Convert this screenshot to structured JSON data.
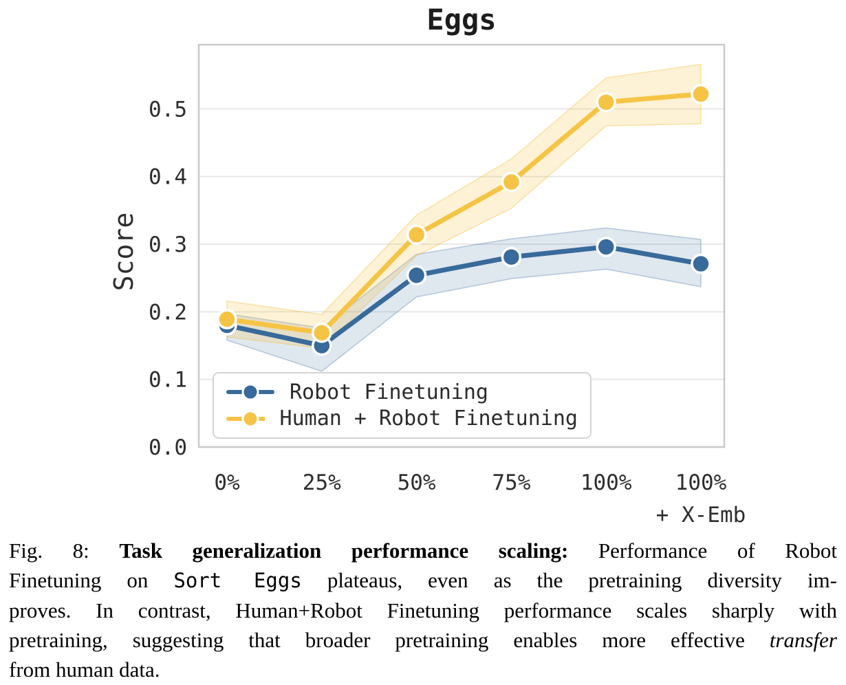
{
  "chart_data": {
    "type": "line",
    "title": "Eggs",
    "ylabel": "Score",
    "xlabel": "",
    "categories": [
      "0%",
      "25%",
      "50%",
      "75%",
      "100%",
      "100% + X-Emb"
    ],
    "x_tick_lines": [
      [
        "0%"
      ],
      [
        "25%"
      ],
      [
        "50%"
      ],
      [
        "75%"
      ],
      [
        "100%"
      ],
      [
        "100%",
        "+ X-Emb"
      ]
    ],
    "y_ticks": [
      0.0,
      0.1,
      0.2,
      0.3,
      0.4,
      0.5
    ],
    "ylim": [
      0,
      0.595
    ],
    "grid": "horizontal",
    "legend_position": "lower-left",
    "series": [
      {
        "name": "Robot Finetuning",
        "color": "#386A9B",
        "band_fill": "rgba(56,106,155,0.16)",
        "band_edge": "rgba(56,106,155,0.30)",
        "values": [
          0.18,
          0.15,
          0.254,
          0.281,
          0.296,
          0.271
        ],
        "band_lower": [
          0.158,
          0.112,
          0.222,
          0.249,
          0.263,
          0.237
        ],
        "band_upper": [
          0.197,
          0.176,
          0.285,
          0.308,
          0.324,
          0.307
        ]
      },
      {
        "name": "Human + Robot Finetuning",
        "color": "#F6C445",
        "band_fill": "rgba(246,196,69,0.22)",
        "band_edge": "rgba(243,195,70,0.40)",
        "values": [
          0.189,
          0.169,
          0.314,
          0.392,
          0.51,
          0.522
        ],
        "band_lower": [
          0.163,
          0.146,
          0.283,
          0.353,
          0.475,
          0.478
        ],
        "band_upper": [
          0.216,
          0.196,
          0.343,
          0.426,
          0.546,
          0.566
        ]
      }
    ],
    "colors": {
      "grid": "#E8E8E8",
      "spine": "#C9C9C9",
      "tick_text": "#2D2D2D",
      "title_text": "#1C1C1C"
    }
  },
  "caption": {
    "lines": [
      {
        "justify": true,
        "segments": [
          {
            "style": "plain",
            "text": "Fig. 8: "
          },
          {
            "style": "bold",
            "text": "Task generalization performance scaling:"
          },
          {
            "style": "plain",
            "text": " Performance of Robot"
          }
        ]
      },
      {
        "justify": true,
        "segments": [
          {
            "style": "plain",
            "text": "Finetuning on "
          },
          {
            "style": "mono",
            "text": "Sort Eggs"
          },
          {
            "style": "plain",
            "text": " plateaus, even as the pretraining diversity im-"
          }
        ]
      },
      {
        "justify": true,
        "segments": [
          {
            "style": "plain",
            "text": "proves. In contrast, Human+Robot Finetuning performance scales sharply with"
          }
        ]
      },
      {
        "justify": true,
        "segments": [
          {
            "style": "plain",
            "text": "pretraining, suggesting that broader pretraining enables more effective "
          },
          {
            "style": "italic",
            "text": "transfer"
          }
        ]
      },
      {
        "justify": false,
        "segments": [
          {
            "style": "plain",
            "text": "from human data."
          }
        ]
      }
    ]
  }
}
